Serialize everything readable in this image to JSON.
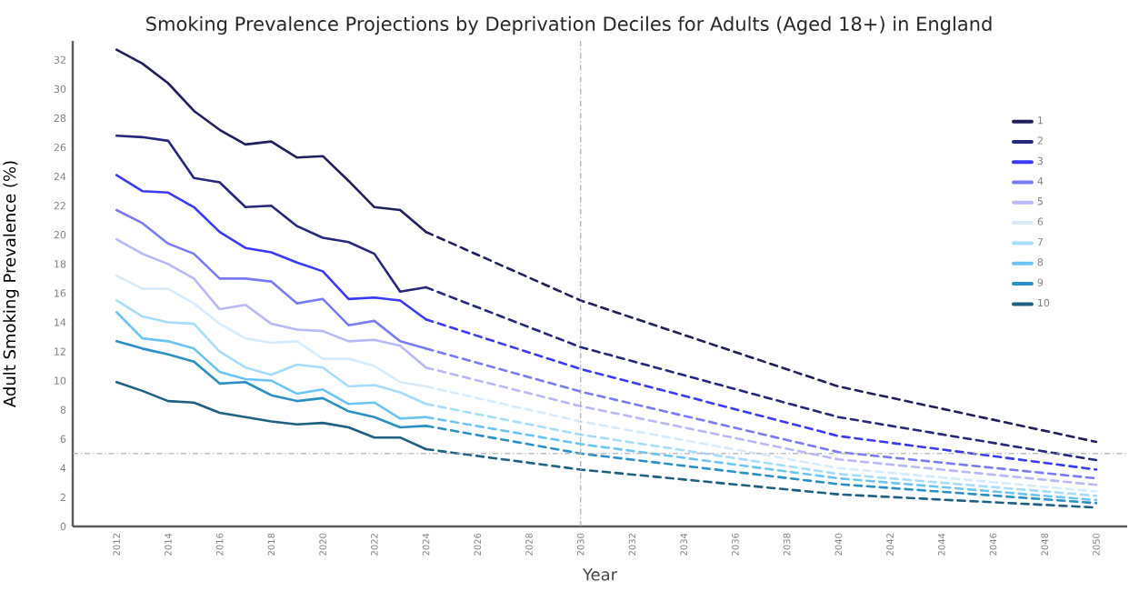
{
  "chart_data": {
    "type": "line",
    "title": "Smoking Prevalence Projections by Deprivation Deciles for Adults (Aged 18+) in England",
    "xlabel": "Year",
    "ylabel": "Adult Smoking Prevalence (%)",
    "xlim": [
      2010.3,
      2051.2
    ],
    "ylim": [
      0,
      33.3
    ],
    "xticks": [
      2012,
      2014,
      2016,
      2018,
      2020,
      2022,
      2024,
      2026,
      2028,
      2030,
      2032,
      2034,
      2036,
      2038,
      2040,
      2042,
      2044,
      2046,
      2048,
      2050
    ],
    "yticks": [
      0,
      2,
      4,
      6,
      8,
      10,
      12,
      14,
      16,
      18,
      20,
      22,
      24,
      26,
      28,
      30,
      32
    ],
    "grid": false,
    "legend": "top right",
    "line_style": "solid",
    "x": [
      2012,
      2013,
      2014,
      2015,
      2016,
      2017,
      2018,
      2019,
      2020,
      2021,
      2022,
      2023,
      2024
    ],
    "series": [
      {
        "name": "1",
        "color": "#1f1f5c",
        "values": [
          32.7,
          31.75,
          30.4,
          28.5,
          27.2,
          26.2,
          26.4,
          25.3,
          25.4,
          23.7,
          21.9,
          21.7,
          20.2
        ]
      },
      {
        "name": "2",
        "color": "#25287a",
        "values": [
          26.8,
          26.7,
          26.45,
          23.9,
          23.6,
          21.9,
          22.0,
          20.6,
          19.8,
          19.5,
          18.7,
          16.1,
          16.4
        ]
      },
      {
        "name": "3",
        "color": "#3a3af5",
        "values": [
          24.1,
          23.0,
          22.9,
          21.9,
          20.2,
          19.1,
          18.8,
          18.1,
          17.5,
          15.6,
          15.7,
          15.5,
          14.2
        ]
      },
      {
        "name": "4",
        "color": "#7a7af5",
        "values": [
          21.7,
          20.8,
          19.4,
          18.7,
          17.0,
          17.0,
          16.8,
          15.3,
          15.6,
          13.8,
          14.1,
          12.7,
          12.2
        ]
      },
      {
        "name": "5",
        "color": "#b9b9fa",
        "values": [
          19.7,
          18.7,
          18.0,
          17.0,
          14.9,
          15.2,
          13.9,
          13.5,
          13.4,
          12.7,
          12.8,
          12.4,
          10.9
        ]
      },
      {
        "name": "6",
        "color": "#d6ecfc",
        "values": [
          17.2,
          16.3,
          16.3,
          15.3,
          13.9,
          12.9,
          12.6,
          12.7,
          11.5,
          11.5,
          11.0,
          9.9,
          9.6
        ]
      },
      {
        "name": "7",
        "color": "#a7dcfb",
        "values": [
          15.5,
          14.4,
          14.0,
          13.9,
          12.0,
          10.9,
          10.4,
          11.1,
          10.9,
          9.6,
          9.7,
          9.2,
          8.4
        ]
      },
      {
        "name": "8",
        "color": "#6cc4f2",
        "values": [
          14.7,
          12.9,
          12.7,
          12.2,
          10.6,
          10.1,
          10.0,
          9.1,
          9.4,
          8.4,
          8.5,
          7.4,
          7.5
        ]
      },
      {
        "name": "9",
        "color": "#2a8fc4",
        "values": [
          12.7,
          12.2,
          11.8,
          11.3,
          9.8,
          9.9,
          9.0,
          8.6,
          8.8,
          7.9,
          7.5,
          6.8,
          6.9
        ]
      },
      {
        "name": "10",
        "color": "#1f5f7f",
        "values": [
          9.9,
          9.3,
          8.6,
          8.5,
          7.8,
          7.5,
          7.2,
          7.0,
          7.1,
          6.8,
          6.1,
          6.1,
          5.3
        ]
      },
      {
        "color": "#1f1f5c",
        "line_style": "dashed",
        "x": [
          2024,
          2030,
          2040,
          2050
        ],
        "values": [
          20.2,
          15.5,
          9.6,
          5.8
        ]
      },
      {
        "color": "#25287a",
        "line_style": "dashed",
        "x": [
          2024,
          2030,
          2040,
          2050
        ],
        "values": [
          16.4,
          12.3,
          7.5,
          4.55
        ]
      },
      {
        "color": "#3a3af5",
        "line_style": "dashed",
        "x": [
          2024,
          2030,
          2040,
          2050
        ],
        "values": [
          14.2,
          10.8,
          6.2,
          3.9
        ]
      },
      {
        "color": "#7a7af5",
        "line_style": "dashed",
        "x": [
          2024,
          2030,
          2040,
          2050
        ],
        "values": [
          12.2,
          9.25,
          5.1,
          3.3
        ]
      },
      {
        "color": "#b9b9fa",
        "line_style": "dashed",
        "x": [
          2024,
          2030,
          2040,
          2050
        ],
        "values": [
          10.9,
          8.25,
          4.6,
          2.85
        ]
      },
      {
        "color": "#d6ecfc",
        "line_style": "dashed",
        "x": [
          2024,
          2030,
          2040,
          2050
        ],
        "values": [
          9.6,
          7.2,
          4.0,
          2.4
        ]
      },
      {
        "color": "#a7dcfb",
        "line_style": "dashed",
        "x": [
          2024,
          2030,
          2040,
          2050
        ],
        "values": [
          8.4,
          6.3,
          3.6,
          2.1
        ]
      },
      {
        "color": "#6cc4f2",
        "line_style": "dashed",
        "x": [
          2024,
          2030,
          2040,
          2050
        ],
        "values": [
          7.5,
          5.65,
          3.3,
          1.8
        ]
      },
      {
        "color": "#2a8fc4",
        "line_style": "dashed",
        "x": [
          2024,
          2030,
          2040,
          2050
        ],
        "values": [
          6.9,
          5.0,
          2.9,
          1.6
        ]
      },
      {
        "color": "#1f5f7f",
        "line_style": "dashed",
        "x": [
          2024,
          2030,
          2040,
          2050
        ],
        "values": [
          5.3,
          3.9,
          2.2,
          1.3
        ]
      }
    ],
    "ref_lines": [
      {
        "axis": "x",
        "value": 2030,
        "color": "#aaaaaa",
        "line_style": "dashdot"
      },
      {
        "axis": "y",
        "value": 5,
        "color": "#aaaaaa",
        "line_style": "dashdot"
      }
    ]
  }
}
